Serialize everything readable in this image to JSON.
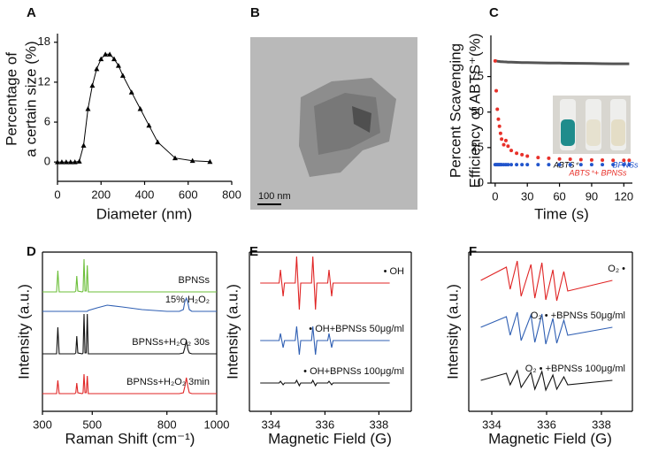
{
  "chart_data": [
    {
      "type": "line",
      "panel_label": "A",
      "xlabel": "Diameter (nm)",
      "ylabel": [
        "Percentage of",
        "a certain size (%)"
      ],
      "x": [
        0,
        20,
        40,
        60,
        80,
        100,
        120,
        140,
        160,
        180,
        200,
        220,
        240,
        260,
        280,
        300,
        340,
        380,
        420,
        460,
        540,
        620,
        700
      ],
      "values": [
        0,
        0,
        0,
        0,
        0,
        0.1,
        2.5,
        8,
        11.5,
        14,
        15.5,
        16.2,
        16.2,
        15.5,
        14.5,
        13,
        10.5,
        8,
        5.5,
        3,
        0.6,
        0.2,
        0.05
      ],
      "color": "#000000",
      "marker": "triangle",
      "xlim": [
        0,
        800
      ],
      "ylim": [
        -2.9,
        19.3
      ],
      "xticks": [
        0,
        200,
        400,
        600,
        800
      ],
      "yticks": [
        0,
        6,
        12,
        18
      ]
    },
    {
      "type": "image",
      "panel_label": "B",
      "scale_bar_label": "100 nm"
    },
    {
      "type": "line",
      "panel_label": "C",
      "xlabel": "Time (s)",
      "ylabel": [
        "Percent Scavenging",
        "Efficiency of ABTS⁺(%)"
      ],
      "x": [
        0,
        1,
        2,
        3,
        4,
        5,
        6,
        8,
        10,
        12,
        15,
        20,
        25,
        30,
        40,
        50,
        60,
        70,
        80,
        90,
        100,
        110,
        120,
        125
      ],
      "series": [
        {
          "name": "ABTS⁺",
          "color": "#555555",
          "mode": "line",
          "values": [
            86,
            86,
            85.8,
            85.7,
            85.6,
            85.5,
            85.5,
            85.4,
            85.3,
            85.2,
            85.1,
            85,
            84.9,
            84.8,
            84.7,
            84.6,
            84.5,
            84.4,
            84.3,
            84.2,
            84.1,
            84,
            84,
            84
          ]
        },
        {
          "name": "ABTS⁺+ BPNSs",
          "color": "#e8312a",
          "mode": "markers",
          "values": [
            86,
            65,
            52,
            45,
            40,
            35,
            31,
            27,
            30,
            26,
            23,
            21,
            20,
            19,
            18,
            17.5,
            17,
            16.8,
            16.5,
            16.3,
            16.2,
            16,
            16,
            16
          ]
        },
        {
          "name": "BPNSs",
          "color": "#2255cc",
          "mode": "markers",
          "values": [
            13,
            13,
            13,
            13,
            13,
            13,
            13,
            13,
            13,
            13,
            13,
            13,
            13,
            13,
            13,
            13,
            13,
            13,
            13,
            13,
            13,
            13,
            13,
            13
          ]
        }
      ],
      "legend": "inset",
      "xlim": [
        -4,
        128
      ],
      "ylim": [
        0,
        104
      ],
      "xticks": [
        0,
        30,
        60,
        90,
        120
      ],
      "yticks": [
        0,
        25,
        50,
        75
      ]
    },
    {
      "type": "line",
      "panel_label": "D",
      "xlabel": "Raman Shift (cm⁻¹)",
      "ylabel": "Intensity (a.u.)",
      "x": [
        300,
        350,
        357,
        362,
        367,
        430,
        434,
        438,
        442,
        460,
        463,
        467,
        471,
        476,
        480,
        484,
        520,
        560,
        620,
        700,
        800,
        850,
        866,
        872,
        878,
        884,
        890,
        900,
        1000
      ],
      "series": [
        {
          "name": "BPNSs",
          "color": "#6cbf3a",
          "values": [
            13.5,
            13.5,
            13.5,
            15.9,
            13.5,
            13.5,
            13.6,
            15.3,
            13.6,
            13.5,
            13.6,
            17.2,
            13.6,
            13.6,
            16.5,
            13.5,
            13.5,
            13.5,
            13.5,
            13.5,
            13.5,
            13.5,
            13.5,
            13.5,
            13.5,
            13.5,
            13.5,
            13.5,
            13.5
          ]
        },
        {
          "name": "15% H₂O₂",
          "color": "#2f5fb3",
          "values": [
            11.3,
            11.3,
            11.3,
            11.3,
            11.3,
            11.3,
            11.3,
            11.3,
            11.3,
            11.3,
            11.3,
            11.3,
            11.3,
            11.3,
            11.3,
            11.4,
            11.7,
            12.0,
            11.8,
            11.5,
            11.3,
            11.3,
            11.5,
            12.4,
            12.8,
            12.3,
            11.5,
            11.3,
            11.3
          ]
        },
        {
          "name": "BPNSs+H₂O₂ 30s",
          "color": "#111111",
          "values": [
            6.5,
            6.5,
            6.5,
            9.5,
            6.5,
            6.5,
            6.6,
            8.5,
            6.6,
            6.5,
            6.6,
            11.0,
            6.6,
            6.6,
            11.0,
            6.5,
            6.5,
            6.5,
            6.5,
            6.5,
            6.5,
            6.5,
            6.6,
            7.2,
            8.0,
            7.0,
            6.6,
            6.5,
            6.5
          ]
        },
        {
          "name": "BPNSs+H₂O₂ 3min",
          "color": "#e02424",
          "values": [
            2.0,
            2.0,
            2.0,
            3.5,
            2.0,
            2.0,
            2.1,
            3.2,
            2.1,
            2.0,
            2.1,
            4.2,
            2.1,
            2.1,
            4.0,
            2.0,
            2.0,
            2.0,
            2.0,
            2.0,
            2.0,
            2.0,
            2.1,
            2.8,
            3.8,
            2.8,
            2.1,
            2.0,
            2.0
          ]
        }
      ],
      "legend": "inline",
      "xlim": [
        300,
        1000
      ],
      "ylim": [
        0,
        18
      ],
      "xticks": [
        300,
        500,
        800,
        1000
      ]
    },
    {
      "type": "line",
      "panel_label": "E",
      "xlabel": "Magnetic Field (G)",
      "ylabel": "Intensity (a.u.)",
      "x": [
        333.6,
        334.3,
        334.35,
        334.45,
        334.5,
        334.9,
        334.95,
        335.05,
        335.1,
        335.5,
        335.55,
        335.65,
        335.7,
        336.1,
        336.15,
        336.25,
        336.3,
        338.4
      ],
      "series": [
        {
          "name": "• OH",
          "color": "#e02424",
          "values": [
            14.5,
            14.5,
            16,
            13,
            14.5,
            14.5,
            17.5,
            11.5,
            14.5,
            14.5,
            17.5,
            11.5,
            14.5,
            14.5,
            16,
            13,
            14.5,
            14.5
          ]
        },
        {
          "name": "• OH+BPNSs 50μg/ml",
          "color": "#2f5fb3",
          "values": [
            8,
            8,
            8.8,
            7.2,
            8,
            8,
            9.6,
            6.4,
            8,
            8,
            9.6,
            6.4,
            8,
            8,
            8.8,
            7.2,
            8,
            8
          ]
        },
        {
          "name": "• OH+BPNSs 100μg/ml",
          "color": "#111111",
          "values": [
            3.2,
            3.2,
            3.4,
            3.0,
            3.2,
            3.2,
            3.5,
            2.9,
            3.2,
            3.2,
            3.5,
            2.9,
            3.2,
            3.2,
            3.4,
            3.0,
            3.2,
            3.2
          ]
        }
      ],
      "legend": "inline",
      "xlim": [
        333.2,
        339.2
      ],
      "ylim": [
        0,
        18
      ],
      "xticks": [
        334,
        336,
        338
      ]
    },
    {
      "type": "line",
      "panel_label": "F",
      "xlabel": "Magnetic Field (G)",
      "ylabel": "Intensity (a.u.)",
      "x": [
        333.6,
        334.53,
        334.67,
        334.93,
        335.07,
        335.43,
        335.57,
        335.83,
        335.97,
        336.23,
        336.37,
        336.63,
        336.77,
        338.4
      ],
      "series": [
        {
          "name": "O₂ •",
          "color": "#e02424",
          "values": [
            14.8,
            16.3,
            13.8,
            17.0,
            13.0,
            16.6,
            12.8,
            16.8,
            12.6,
            16.0,
            12.5,
            15.8,
            13.6,
            14.8
          ]
        },
        {
          "name": "O₂ • +BPNSs 50μg/ml",
          "color": "#2f5fb3",
          "values": [
            9.5,
            10.7,
            8.6,
            11.2,
            8.0,
            10.9,
            7.8,
            11.0,
            7.6,
            10.5,
            7.7,
            10.3,
            8.6,
            9.5
          ]
        },
        {
          "name": "O₂ • +BPNSs 100μg/ml",
          "color": "#111111",
          "values": [
            3.5,
            4.3,
            3.0,
            4.6,
            2.7,
            4.4,
            2.5,
            4.5,
            2.4,
            4.1,
            2.5,
            3.9,
            3.0,
            3.5
          ]
        }
      ],
      "legend": "inline",
      "xlim": [
        333.16,
        339.13
      ],
      "ylim": [
        0,
        18
      ],
      "xticks": [
        334,
        336,
        338
      ]
    }
  ]
}
